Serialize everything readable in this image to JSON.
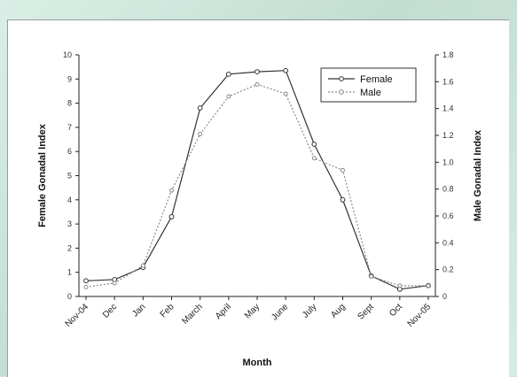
{
  "chart_data": {
    "type": "line",
    "title": "",
    "xlabel": "Month",
    "ylabel_left": "Female Gonadal Index",
    "ylabel_right": "Male Gonadal Index",
    "categories": [
      "Nov-04",
      "Dec",
      "Jan",
      "Feb",
      "March",
      "April",
      "May",
      "June",
      "July",
      "Aug",
      "Sept",
      "Oct",
      "Nov-05"
    ],
    "y_left": {
      "min": 0,
      "max": 10,
      "ticks": [
        "0",
        "1",
        "2",
        "3",
        "4",
        "5",
        "6",
        "7",
        "8",
        "9",
        "10"
      ]
    },
    "y_right": {
      "min": 0,
      "max": 1.8,
      "ticks": [
        "0",
        "0.2",
        "0.4",
        "0.6",
        "0.8",
        "1.0",
        "1.2",
        "1.4",
        "1.6",
        "1.8"
      ]
    },
    "legend_position": "top-right",
    "grid": false,
    "series": [
      {
        "name": "Female",
        "axis": "left",
        "style": "solid",
        "color": "#333333",
        "values": [
          0.65,
          0.7,
          1.2,
          3.3,
          7.8,
          9.2,
          9.3,
          9.35,
          6.3,
          4.0,
          0.85,
          0.3,
          0.45
        ]
      },
      {
        "name": "Male",
        "axis": "right",
        "style": "dotted",
        "color": "#8a8a8a",
        "values": [
          0.07,
          0.1,
          0.23,
          0.79,
          1.21,
          1.49,
          1.58,
          1.51,
          1.03,
          0.94,
          0.15,
          0.08,
          0.08
        ]
      }
    ]
  }
}
